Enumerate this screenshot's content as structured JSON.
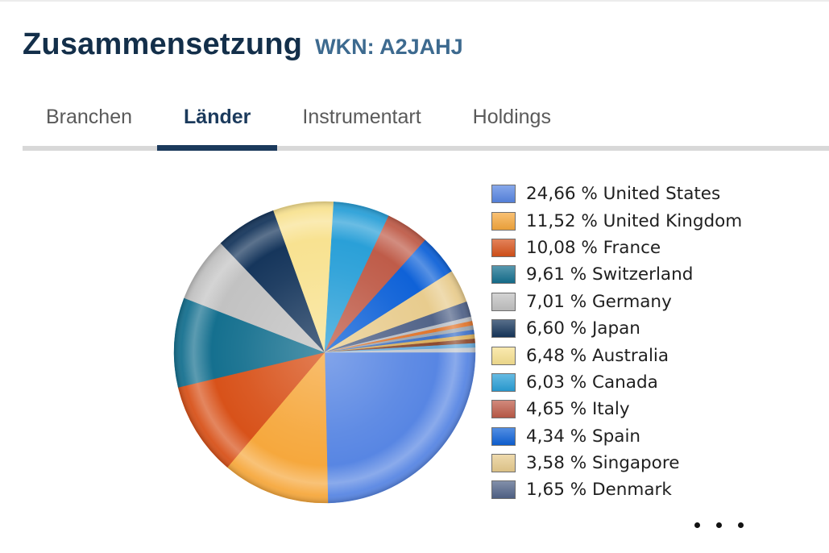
{
  "header": {
    "title": "Zusammensetzung",
    "wkn": "WKN: A2JAHJ"
  },
  "tabs": {
    "items": [
      {
        "label": "Branchen",
        "active": false
      },
      {
        "label": "Länder",
        "active": true
      },
      {
        "label": "Instrumentart",
        "active": false
      },
      {
        "label": "Holdings",
        "active": false
      }
    ]
  },
  "colors": {
    "title": "#132f4a",
    "wkn": "#3d6a8f",
    "tab_inactive": "#5a5a5a",
    "tab_active": "#1b3a5c",
    "tab_track": "#d8d8d8",
    "legend_text": "#1f1f1f"
  },
  "chart_data": {
    "type": "pie",
    "unit": "%",
    "legend_position": "right",
    "start_angle_deg": 0,
    "direction": "clockwise",
    "slices": [
      {
        "name": "United States",
        "value": 24.66,
        "label": "24,66 % United States",
        "color": "#5886e3"
      },
      {
        "name": "United Kingdom",
        "value": 11.52,
        "label": "11,52 % United Kingdom",
        "color": "#f6a83d"
      },
      {
        "name": "France",
        "value": 10.08,
        "label": "10,08 % France",
        "color": "#d8521a"
      },
      {
        "name": "Switzerland",
        "value": 9.61,
        "label": "9,61 % Switzerland",
        "color": "#15708f"
      },
      {
        "name": "Germany",
        "value": 7.01,
        "label": "7,01 % Germany",
        "color": "#c2c2c2"
      },
      {
        "name": "Japan",
        "value": 6.6,
        "label": "6,60 % Japan",
        "color": "#16365c"
      },
      {
        "name": "Australia",
        "value": 6.48,
        "label": "6,48 % Australia",
        "color": "#f8e291"
      },
      {
        "name": "Canada",
        "value": 6.03,
        "label": "6,03 % Canada",
        "color": "#2aa0d8"
      },
      {
        "name": "Italy",
        "value": 4.65,
        "label": "4,65 % Italy",
        "color": "#bf5c49"
      },
      {
        "name": "Spain",
        "value": 4.34,
        "label": "4,34 % Spain",
        "color": "#0f62d8"
      },
      {
        "name": "Singapore",
        "value": 3.58,
        "label": "3,58 % Singapore",
        "color": "#e8cc8e"
      },
      {
        "name": "Denmark",
        "value": 1.65,
        "label": "1,65 % Denmark",
        "color": "#526489"
      }
    ],
    "other_slices_total": 3.79,
    "other_slice_colors": [
      "#b8bdc4",
      "#e0762e",
      "#9aa5b1",
      "#3f72c8",
      "#d9b05e",
      "#8c4a2f",
      "#67a9d8",
      "#c2c8d0"
    ]
  },
  "more_indicator": {
    "dots": 3
  }
}
